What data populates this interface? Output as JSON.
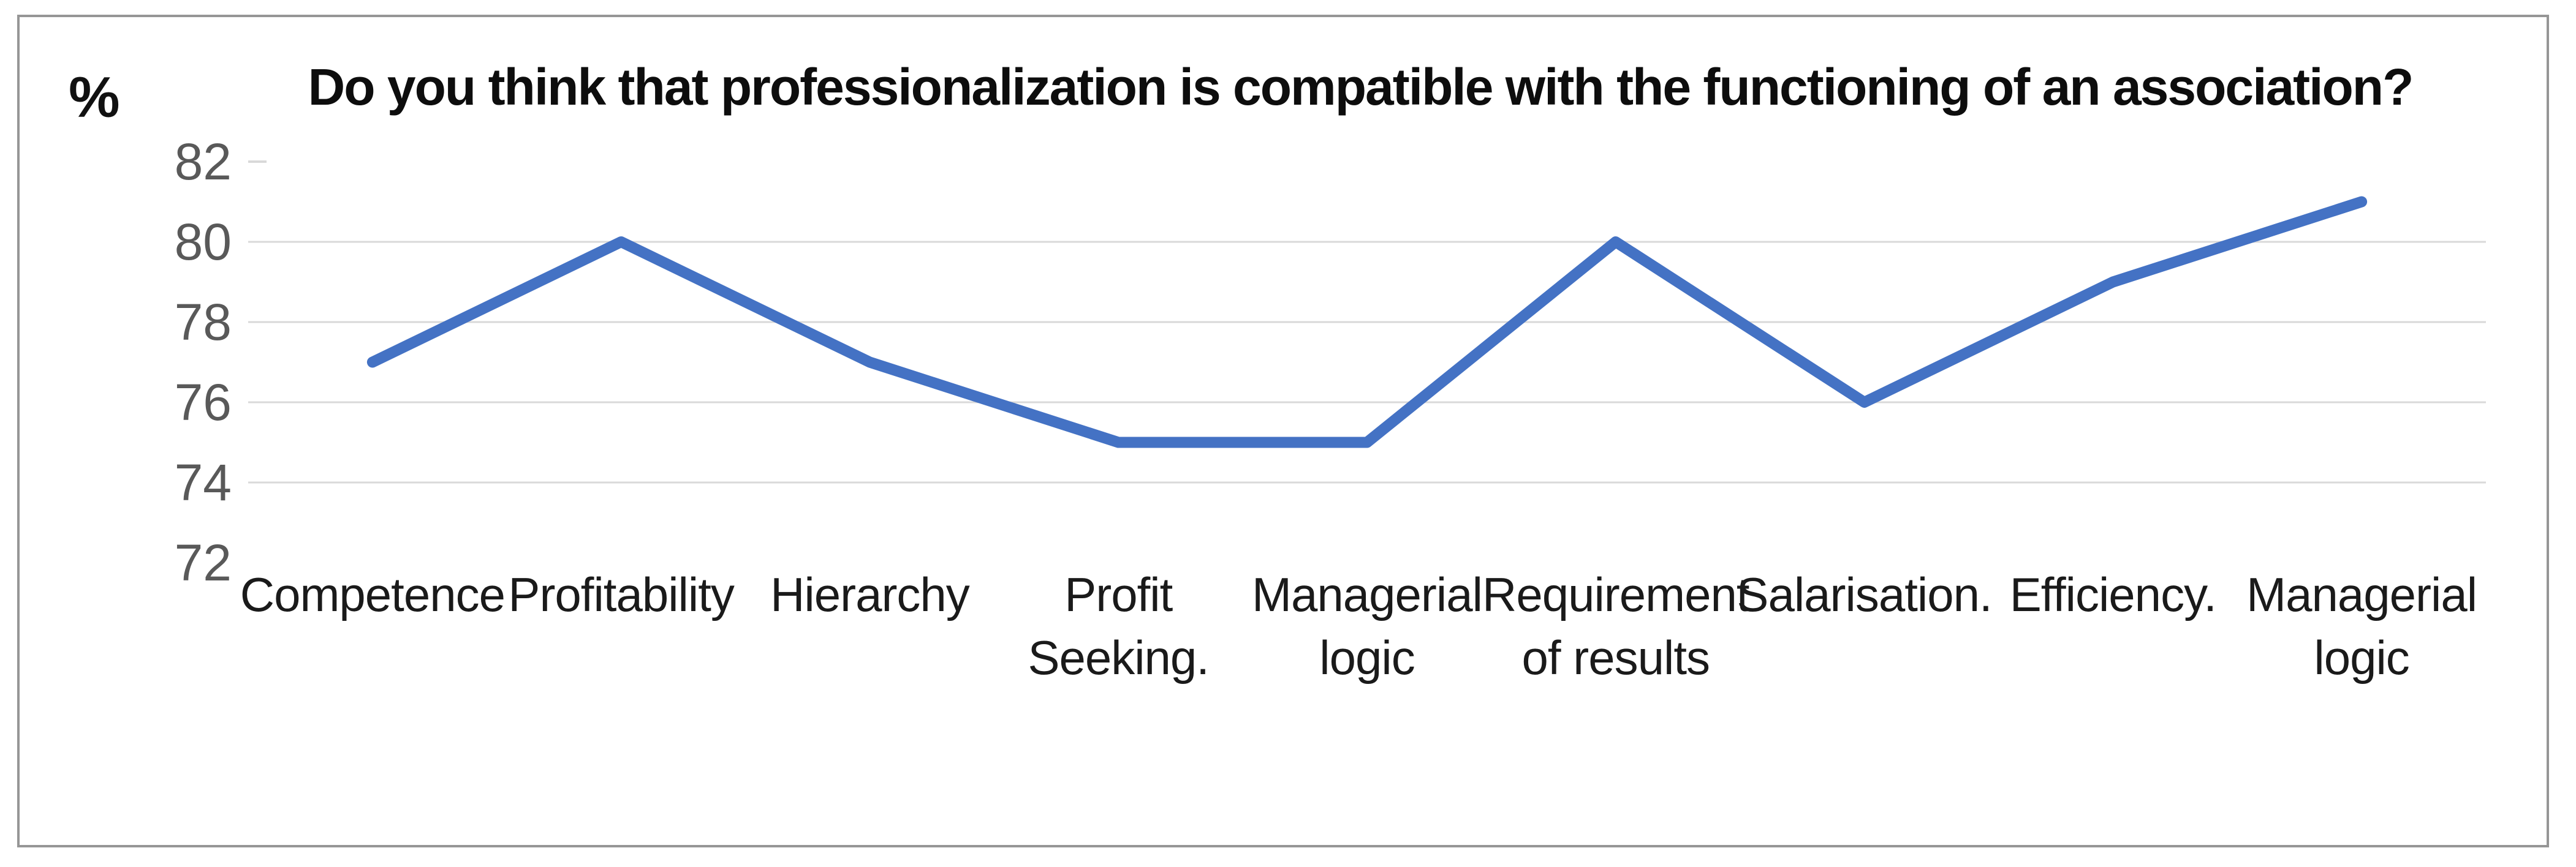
{
  "chart": {
    "unit": "%",
    "title": "Do you think that professionalization is compatible with the functioning of an association?"
  },
  "chart_data": {
    "type": "line",
    "title": "Do you think that professionalization is compatible with the functioning of an association?",
    "ylabel": "%",
    "xlabel": "",
    "categories": [
      "Competence",
      "Profitability",
      "Hierarchy",
      "Profit\nSeeking.",
      "Managerial\nlogic",
      "Requirement\nof results",
      "Salarisation.",
      "Efficiency.",
      "Managerial\nlogic"
    ],
    "values": [
      77,
      80,
      77,
      75,
      75,
      80,
      76,
      79,
      81
    ],
    "y_ticks": [
      82,
      80,
      78,
      76,
      74,
      72
    ],
    "gridlines_at": [
      80,
      78,
      76,
      74
    ],
    "stub_tick_at": 82,
    "ylim": [
      72,
      83
    ],
    "grid": true,
    "legend": "none",
    "line_color": "#4472C4",
    "gridline_color": "#D9D9D9",
    "border_color": "#969696",
    "y_label_color": "#595959",
    "category_label_color": "#1a1a1a"
  }
}
